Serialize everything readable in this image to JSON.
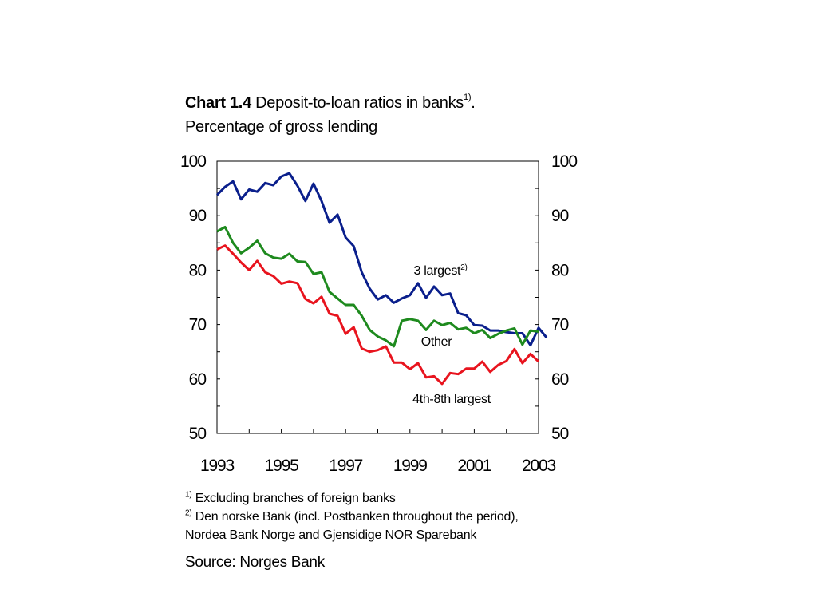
{
  "header": {
    "chart_label": "Chart 1.4",
    "title": "Deposit-to-loan ratios in banks",
    "title_sup": "1)",
    "title_end": ".",
    "subtitle": "Percentage of gross lending"
  },
  "footnotes": [
    {
      "mark": "1)",
      "text": "Excluding branches of foreign banks"
    },
    {
      "mark": "2)",
      "text": "Den norske Bank (incl. Postbanken throughout the period),"
    },
    {
      "mark": "",
      "text": "Nordea Bank Norge and Gjensidige NOR Sparebank"
    }
  ],
  "source": "Source: Norges Bank",
  "chart_data": {
    "type": "line",
    "title": "Deposit-to-loan ratios in banks",
    "ylabel": "Percentage of gross lending",
    "ylim": [
      50,
      100
    ],
    "yticks": [
      100,
      90,
      80,
      70,
      60,
      50
    ],
    "xlim": [
      1993.0,
      2003.0
    ],
    "xticks": [
      "1993",
      "1995",
      "1997",
      "1999",
      "2001",
      "2003"
    ],
    "grid": false,
    "legend": "inline labels",
    "x_start": 1993.0,
    "x_step": 0.25,
    "series": [
      {
        "name": "3 largest",
        "name_sup": "2)",
        "color": "#0a1f8c",
        "values": [
          93.8,
          95.3,
          96.3,
          93.0,
          94.8,
          94.4,
          96.0,
          95.6,
          97.2,
          97.8,
          95.5,
          92.7,
          95.9,
          92.7,
          88.7,
          90.2,
          86.0,
          84.4,
          79.6,
          76.6,
          74.6,
          75.4,
          74.0,
          74.8,
          75.4,
          77.6,
          74.9,
          77.0,
          75.4,
          75.7,
          72.1,
          71.7,
          69.9,
          69.8,
          68.9,
          68.9,
          68.6,
          68.4,
          68.4,
          66.2,
          69.4,
          67.6
        ]
      },
      {
        "name": "Other",
        "color": "#1e8a1e",
        "values": [
          87.1,
          87.9,
          85.0,
          83.1,
          84.1,
          85.4,
          83.1,
          82.3,
          82.1,
          83.0,
          81.6,
          81.5,
          79.3,
          79.6,
          76.0,
          74.8,
          73.6,
          73.6,
          71.6,
          69.0,
          67.8,
          67.1,
          66.0,
          70.7,
          71.0,
          70.7,
          69.0,
          70.7,
          69.9,
          70.3,
          69.1,
          69.4,
          68.4,
          69.0,
          67.5,
          68.3,
          68.9,
          69.3,
          66.3,
          68.9,
          68.7
        ]
      },
      {
        "name": "4th-8th largest",
        "color": "#e8141e",
        "values": [
          83.8,
          84.5,
          83.0,
          81.4,
          80.0,
          81.7,
          79.6,
          78.9,
          77.5,
          77.9,
          77.6,
          74.7,
          73.9,
          75.1,
          72.0,
          71.6,
          68.3,
          69.5,
          65.6,
          65.0,
          65.3,
          66.0,
          63.0,
          63.0,
          61.8,
          62.9,
          60.3,
          60.5,
          59.1,
          61.1,
          60.9,
          61.9,
          61.9,
          63.2,
          61.3,
          62.6,
          63.3,
          65.5,
          62.9,
          64.6,
          63.2
        ]
      }
    ],
    "annotations": [
      {
        "series": "3 largest",
        "text": "3 largest",
        "sup": "2)"
      },
      {
        "series": "Other",
        "text": "Other"
      },
      {
        "series": "4th-8th largest",
        "text": "4th-8th largest"
      }
    ]
  }
}
